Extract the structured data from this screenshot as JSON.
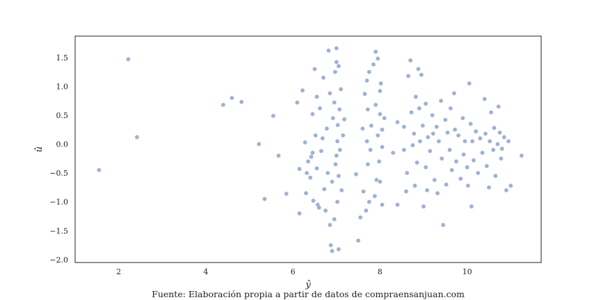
{
  "chart_data": {
    "type": "scatter",
    "xlabel": "ŷ",
    "ylabel": "û",
    "caption": "Fuente: Elaboración propia a partir de datos de compraensanjuan.com",
    "xlim": [
      1.0,
      11.7
    ],
    "ylim": [
      -2.05,
      1.87
    ],
    "x_ticks": [
      2,
      4,
      6,
      8,
      10
    ],
    "y_ticks": [
      1.5,
      1.0,
      0.5,
      0.0,
      -0.5,
      -1.0,
      -1.5,
      -2.0
    ],
    "y_tick_labels": [
      "1.5",
      "1.0",
      "0.5",
      "0.0",
      "−0.5",
      "−1.0",
      "−1.5",
      "−2.0"
    ],
    "grid": false,
    "marker_color": "#4c72b0",
    "points": [
      [
        1.55,
        -0.45
      ],
      [
        2.22,
        1.47
      ],
      [
        2.42,
        0.12
      ],
      [
        4.4,
        0.68
      ],
      [
        4.6,
        0.8
      ],
      [
        4.82,
        0.73
      ],
      [
        5.22,
        0.0
      ],
      [
        5.35,
        -0.95
      ],
      [
        5.55,
        0.49
      ],
      [
        5.67,
        -0.2
      ],
      [
        5.85,
        -0.86
      ],
      [
        6.1,
        0.72
      ],
      [
        6.15,
        -1.2
      ],
      [
        6.15,
        -0.43
      ],
      [
        6.22,
        0.93
      ],
      [
        6.28,
        0.03
      ],
      [
        6.3,
        -0.85
      ],
      [
        6.32,
        -0.5
      ],
      [
        6.35,
        -0.3
      ],
      [
        6.4,
        -0.58
      ],
      [
        6.42,
        -0.22
      ],
      [
        6.45,
        0.52
      ],
      [
        6.45,
        -0.15
      ],
      [
        6.47,
        -0.98
      ],
      [
        6.5,
        1.3
      ],
      [
        6.52,
        0.15
      ],
      [
        6.55,
        0.82
      ],
      [
        6.55,
        -0.42
      ],
      [
        6.57,
        -1.05
      ],
      [
        6.6,
        -1.1
      ],
      [
        6.62,
        0.62
      ],
      [
        6.65,
        -0.12
      ],
      [
        6.68,
        0.1
      ],
      [
        6.7,
        1.15
      ],
      [
        6.72,
        -0.78
      ],
      [
        6.75,
        -1.15
      ],
      [
        6.78,
        0.27
      ],
      [
        6.8,
        -0.5
      ],
      [
        6.82,
        1.62
      ],
      [
        6.85,
        0.88
      ],
      [
        6.85,
        -1.4
      ],
      [
        6.87,
        -1.75
      ],
      [
        6.9,
        -1.85
      ],
      [
        6.9,
        -0.65
      ],
      [
        6.92,
        0.45
      ],
      [
        6.95,
        -1.3
      ],
      [
        6.95,
        0.72
      ],
      [
        6.97,
        1.25
      ],
      [
        6.98,
        -0.35
      ],
      [
        7.0,
        1.66
      ],
      [
        7.0,
        1.42
      ],
      [
        7.0,
        -0.2
      ],
      [
        7.02,
        0.05
      ],
      [
        7.02,
        -1.0
      ],
      [
        7.03,
        0.33
      ],
      [
        7.05,
        1.35
      ],
      [
        7.05,
        -0.55
      ],
      [
        7.05,
        -1.82
      ],
      [
        7.07,
        0.6
      ],
      [
        7.08,
        -0.1
      ],
      [
        7.1,
        0.95
      ],
      [
        7.12,
        -0.8
      ],
      [
        7.15,
        0.15
      ],
      [
        7.18,
        0.43
      ],
      [
        7.45,
        -0.52
      ],
      [
        7.5,
        -1.67
      ],
      [
        7.55,
        -1.27
      ],
      [
        7.6,
        0.27
      ],
      [
        7.62,
        -0.82
      ],
      [
        7.65,
        0.87
      ],
      [
        7.68,
        -1.15
      ],
      [
        7.7,
        1.1
      ],
      [
        7.7,
        0.05
      ],
      [
        7.72,
        -0.35
      ],
      [
        7.72,
        0.6
      ],
      [
        7.75,
        1.25
      ],
      [
        7.75,
        -1.0
      ],
      [
        7.78,
        -0.1
      ],
      [
        7.8,
        0.32
      ],
      [
        7.85,
        1.38
      ],
      [
        7.88,
        -0.9
      ],
      [
        7.9,
        1.6
      ],
      [
        7.9,
        0.68
      ],
      [
        7.92,
        -0.62
      ],
      [
        7.95,
        1.48
      ],
      [
        7.95,
        0.15
      ],
      [
        7.98,
        -0.3
      ],
      [
        8.0,
        0.52
      ],
      [
        8.0,
        -0.65
      ],
      [
        8.0,
        0.92
      ],
      [
        8.02,
        1.05
      ],
      [
        8.05,
        0.25
      ],
      [
        8.05,
        -0.05
      ],
      [
        8.05,
        -1.05
      ],
      [
        8.1,
        0.45
      ],
      [
        8.3,
        -0.15
      ],
      [
        8.4,
        0.38
      ],
      [
        8.4,
        -1.05
      ],
      [
        8.55,
        -0.1
      ],
      [
        8.55,
        0.3
      ],
      [
        8.6,
        -0.82
      ],
      [
        8.62,
        -0.5
      ],
      [
        8.65,
        1.18
      ],
      [
        8.7,
        1.45
      ],
      [
        8.72,
        0.55
      ],
      [
        8.75,
        -0.02
      ],
      [
        8.78,
        0.18
      ],
      [
        8.8,
        -0.72
      ],
      [
        8.82,
        0.82
      ],
      [
        8.85,
        -0.32
      ],
      [
        8.88,
        1.3
      ],
      [
        8.9,
        0.62
      ],
      [
        8.92,
        0.05
      ],
      [
        8.95,
        1.2
      ],
      [
        8.98,
        0.32
      ],
      [
        9.0,
        -1.08
      ],
      [
        9.05,
        -0.4
      ],
      [
        9.05,
        0.7
      ],
      [
        9.08,
        -0.8
      ],
      [
        9.1,
        0.12
      ],
      [
        9.15,
        -0.12
      ],
      [
        9.2,
        0.5
      ],
      [
        9.22,
        0.18
      ],
      [
        9.25,
        -0.62
      ],
      [
        9.3,
        0.3
      ],
      [
        9.32,
        -0.85
      ],
      [
        9.35,
        0.05
      ],
      [
        9.4,
        0.75
      ],
      [
        9.42,
        -0.25
      ],
      [
        9.45,
        -1.4
      ],
      [
        9.5,
        0.42
      ],
      [
        9.52,
        -0.7
      ],
      [
        9.55,
        0.2
      ],
      [
        9.6,
        -0.1
      ],
      [
        9.62,
        0.62
      ],
      [
        9.65,
        -0.45
      ],
      [
        9.7,
        0.88
      ],
      [
        9.72,
        0.25
      ],
      [
        9.75,
        -0.3
      ],
      [
        9.8,
        0.15
      ],
      [
        9.85,
        -0.6
      ],
      [
        9.9,
        0.45
      ],
      [
        9.92,
        -0.18
      ],
      [
        9.95,
        0.05
      ],
      [
        10.0,
        -0.4
      ],
      [
        10.02,
        -0.72
      ],
      [
        10.05,
        1.05
      ],
      [
        10.08,
        0.35
      ],
      [
        10.1,
        -1.08
      ],
      [
        10.12,
        0.05
      ],
      [
        10.15,
        -0.28
      ],
      [
        10.2,
        0.22
      ],
      [
        10.25,
        -0.5
      ],
      [
        10.3,
        0.1
      ],
      [
        10.35,
        -0.15
      ],
      [
        10.4,
        0.78
      ],
      [
        10.42,
        0.18
      ],
      [
        10.45,
        -0.38
      ],
      [
        10.5,
        -0.75
      ],
      [
        10.52,
        0.05
      ],
      [
        10.55,
        0.55
      ],
      [
        10.6,
        -0.1
      ],
      [
        10.62,
        0.28
      ],
      [
        10.65,
        -0.55
      ],
      [
        10.7,
        0.0
      ],
      [
        10.72,
        0.65
      ],
      [
        10.75,
        0.2
      ],
      [
        10.78,
        -0.25
      ],
      [
        10.8,
        -0.08
      ],
      [
        10.85,
        0.12
      ],
      [
        10.9,
        -0.8
      ],
      [
        10.95,
        0.05
      ],
      [
        11.0,
        -0.72
      ],
      [
        11.25,
        -0.2
      ]
    ]
  }
}
